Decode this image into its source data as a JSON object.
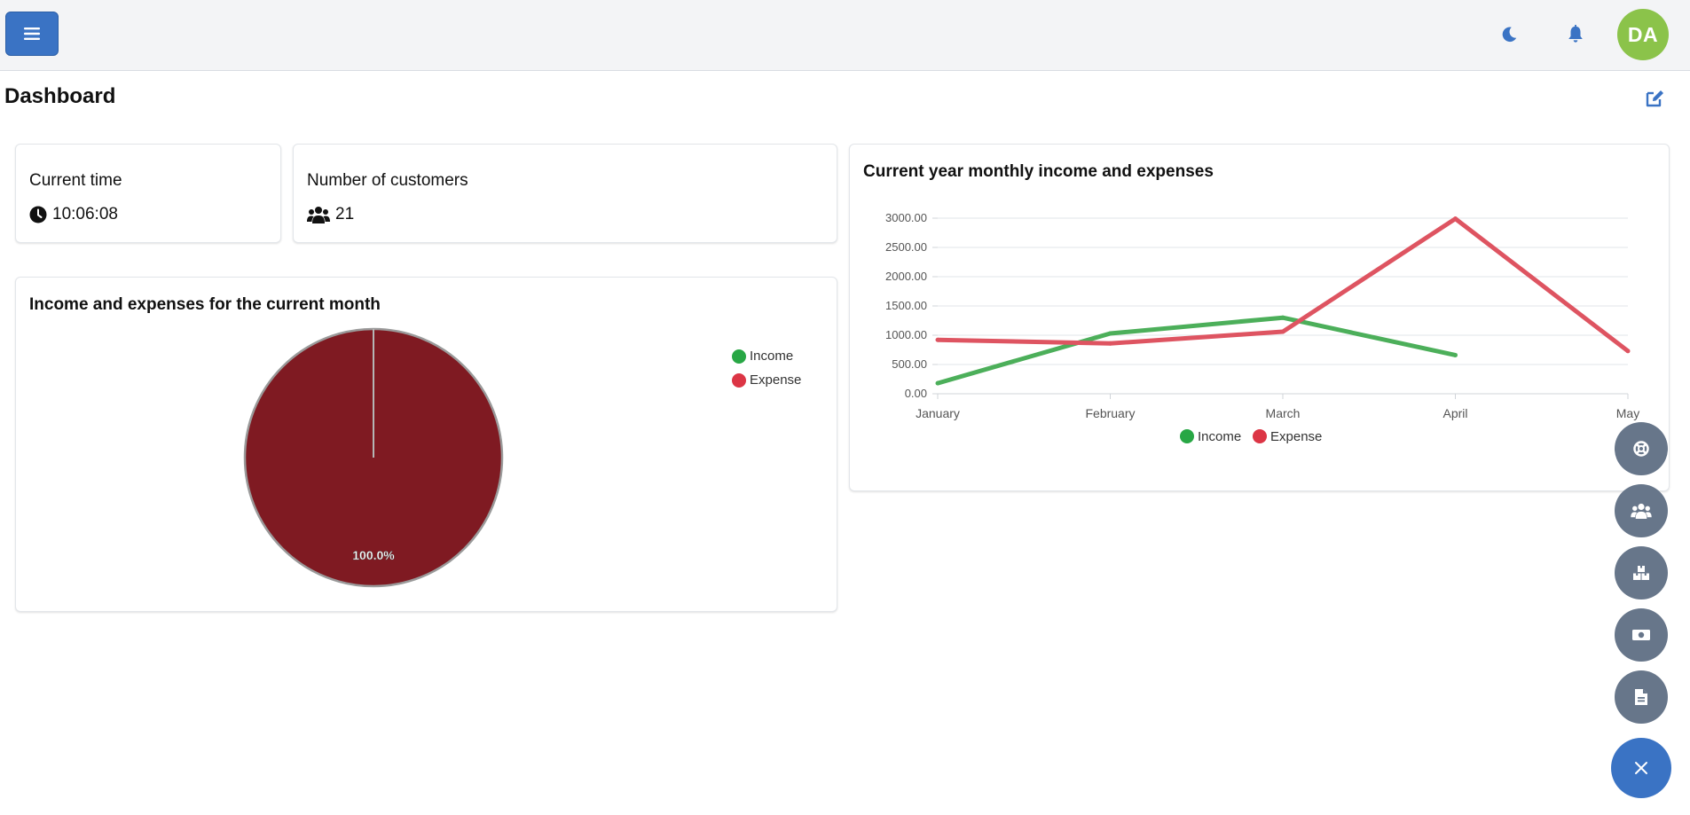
{
  "header": {
    "avatar_initials": "DA",
    "accent_color": "#3a73c4",
    "avatar_color": "#8bc34a"
  },
  "page": {
    "title": "Dashboard"
  },
  "current_time_card": {
    "label": "Current time",
    "value": "10:06:08"
  },
  "customers_card": {
    "label": "Number of customers",
    "value": "21"
  },
  "month_card": {
    "title": "Income and expenses for the current month",
    "legend": [
      {
        "label": "Income",
        "color": "#28a745"
      },
      {
        "label": "Expense",
        "color": "#dc3545"
      }
    ],
    "slice_label": "100.0%"
  },
  "year_card": {
    "title": "Current year monthly income and expenses"
  },
  "chart_data": [
    {
      "type": "pie",
      "title": "Income and expenses for the current month",
      "categories": [
        "Income",
        "Expense"
      ],
      "values": [
        0,
        100
      ],
      "colors": [
        "#28a745",
        "#7f1a22"
      ],
      "legend": "top-right"
    },
    {
      "type": "line",
      "title": "Current year monthly income and expenses",
      "categories": [
        "January",
        "February",
        "March",
        "April",
        "May"
      ],
      "y_ticks": [
        "0.00",
        "500.00",
        "1000.00",
        "1500.00",
        "2000.00",
        "2500.00",
        "3000.00"
      ],
      "ylim": [
        0,
        3000
      ],
      "grid": true,
      "legend": "bottom-center",
      "series": [
        {
          "name": "Income",
          "color": "#4caf5a",
          "values": [
            180,
            1030,
            1300,
            660,
            null
          ]
        },
        {
          "name": "Expense",
          "color": "#de5461",
          "values": [
            920,
            860,
            1060,
            2990,
            730
          ]
        }
      ]
    }
  ],
  "fabs": [
    {
      "icon": "life-ring-icon"
    },
    {
      "icon": "users-icon"
    },
    {
      "icon": "boxes-icon"
    },
    {
      "icon": "money-bill-icon"
    },
    {
      "icon": "file-invoice-icon"
    },
    {
      "icon": "close-icon"
    }
  ]
}
